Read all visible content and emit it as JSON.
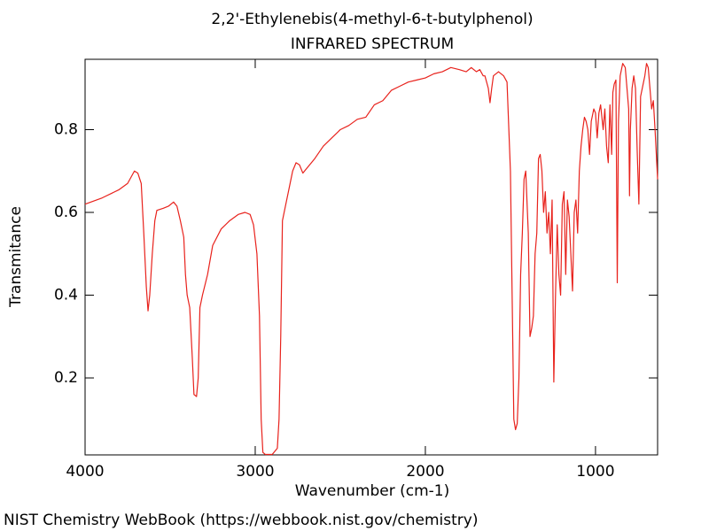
{
  "chart_data": {
    "type": "line",
    "title": "2,2'-Ethylenebis(4-methyl-6-t-butylphenol)",
    "subtitle": "INFRARED SPECTRUM",
    "x_label": "Wavenumber (cm-1)",
    "y_label": "Transmitance",
    "note": "NIST Chemistry WebBook (https://webbook.nist.gov/chemistry)",
    "color": "#e8221c",
    "xlim": [
      4000,
      635
    ],
    "ylim": [
      0.014,
      0.97
    ],
    "xticks": [
      4000,
      3000,
      2000,
      1000
    ],
    "yticks": [
      0.2,
      0.4,
      0.6,
      0.8
    ],
    "x": [
      4000,
      3900,
      3800,
      3750,
      3710,
      3690,
      3670,
      3655,
      3640,
      3630,
      3620,
      3605,
      3590,
      3578,
      3540,
      3510,
      3480,
      3460,
      3440,
      3420,
      3410,
      3400,
      3385,
      3370,
      3360,
      3345,
      3335,
      3325,
      3310,
      3280,
      3250,
      3200,
      3150,
      3100,
      3060,
      3030,
      3010,
      2990,
      2975,
      2965,
      2955,
      2940,
      2900,
      2870,
      2860,
      2850,
      2840,
      2820,
      2800,
      2780,
      2760,
      2740,
      2720,
      2700,
      2650,
      2600,
      2550,
      2500,
      2450,
      2400,
      2350,
      2300,
      2250,
      2200,
      2150,
      2100,
      2050,
      2000,
      1950,
      1900,
      1850,
      1800,
      1760,
      1730,
      1700,
      1680,
      1660,
      1650,
      1630,
      1620,
      1610,
      1600,
      1570,
      1540,
      1520,
      1500,
      1490,
      1480,
      1470,
      1460,
      1450,
      1440,
      1430,
      1420,
      1410,
      1400,
      1395,
      1385,
      1375,
      1365,
      1355,
      1345,
      1335,
      1325,
      1315,
      1305,
      1295,
      1285,
      1275,
      1265,
      1255,
      1245,
      1235,
      1225,
      1215,
      1205,
      1195,
      1185,
      1175,
      1165,
      1155,
      1145,
      1135,
      1125,
      1115,
      1105,
      1095,
      1085,
      1075,
      1065,
      1055,
      1045,
      1035,
      1025,
      1010,
      1000,
      990,
      980,
      970,
      955,
      945,
      935,
      925,
      915,
      905,
      898,
      890,
      880,
      872,
      865,
      855,
      840,
      825,
      815,
      805,
      800,
      795,
      785,
      775,
      765,
      755,
      745,
      735,
      725,
      710,
      700,
      690,
      680,
      670,
      660,
      650,
      640,
      635
    ],
    "values": [
      0.62,
      0.635,
      0.655,
      0.67,
      0.7,
      0.695,
      0.67,
      0.55,
      0.42,
      0.362,
      0.4,
      0.5,
      0.58,
      0.605,
      0.61,
      0.615,
      0.625,
      0.615,
      0.58,
      0.54,
      0.45,
      0.4,
      0.37,
      0.25,
      0.16,
      0.155,
      0.2,
      0.37,
      0.4,
      0.45,
      0.52,
      0.56,
      0.58,
      0.595,
      0.6,
      0.595,
      0.57,
      0.5,
      0.35,
      0.1,
      0.02,
      0.015,
      0.015,
      0.03,
      0.1,
      0.3,
      0.58,
      0.62,
      0.66,
      0.7,
      0.72,
      0.715,
      0.695,
      0.705,
      0.73,
      0.76,
      0.78,
      0.8,
      0.81,
      0.825,
      0.83,
      0.86,
      0.87,
      0.895,
      0.905,
      0.915,
      0.92,
      0.925,
      0.935,
      0.94,
      0.95,
      0.945,
      0.94,
      0.95,
      0.94,
      0.945,
      0.93,
      0.93,
      0.9,
      0.865,
      0.9,
      0.93,
      0.94,
      0.93,
      0.915,
      0.7,
      0.4,
      0.1,
      0.075,
      0.09,
      0.2,
      0.45,
      0.55,
      0.68,
      0.7,
      0.6,
      0.55,
      0.3,
      0.32,
      0.35,
      0.5,
      0.55,
      0.73,
      0.74,
      0.7,
      0.6,
      0.65,
      0.55,
      0.6,
      0.5,
      0.63,
      0.19,
      0.4,
      0.57,
      0.45,
      0.4,
      0.62,
      0.65,
      0.45,
      0.63,
      0.59,
      0.5,
      0.41,
      0.6,
      0.63,
      0.55,
      0.7,
      0.76,
      0.8,
      0.83,
      0.82,
      0.8,
      0.74,
      0.82,
      0.85,
      0.84,
      0.78,
      0.84,
      0.86,
      0.8,
      0.85,
      0.76,
      0.72,
      0.86,
      0.74,
      0.89,
      0.91,
      0.92,
      0.43,
      0.82,
      0.93,
      0.96,
      0.95,
      0.9,
      0.85,
      0.64,
      0.8,
      0.9,
      0.93,
      0.9,
      0.75,
      0.62,
      0.88,
      0.9,
      0.93,
      0.96,
      0.95,
      0.9,
      0.85,
      0.87,
      0.8,
      0.72,
      0.68
    ]
  }
}
